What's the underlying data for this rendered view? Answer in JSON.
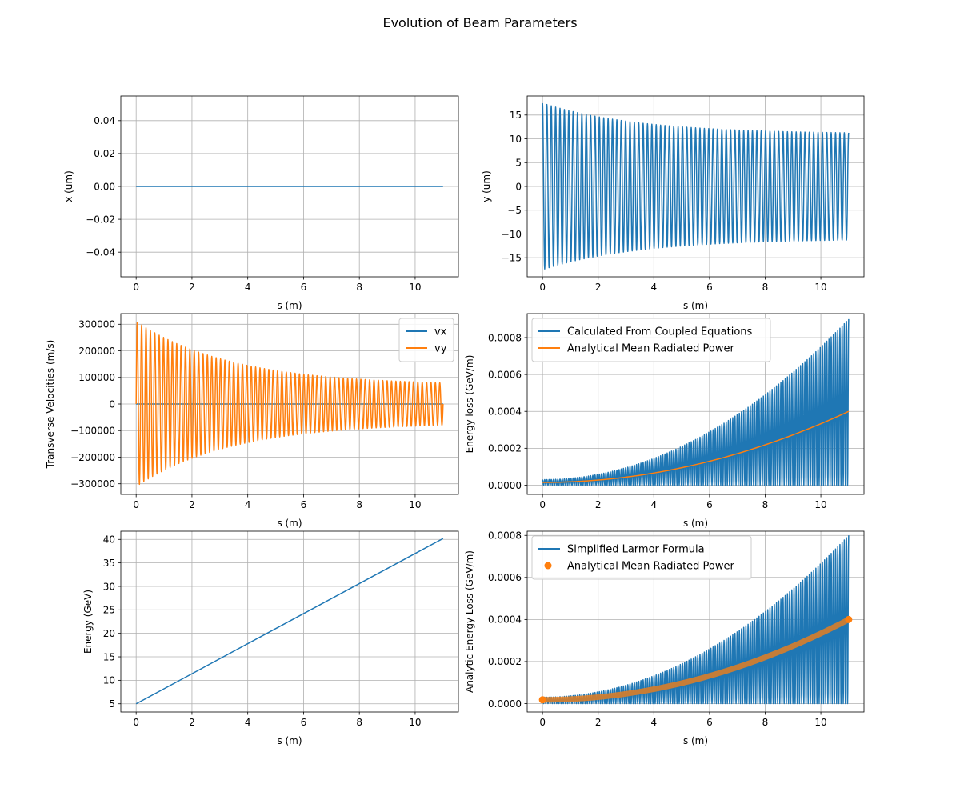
{
  "figure": {
    "title": "Evolution of Beam Parameters"
  },
  "colors": {
    "blue": "#1f77b4",
    "orange": "#ff7f0e",
    "grid": "#b0b0b0"
  },
  "chart_data": [
    {
      "id": "x",
      "type": "line",
      "xlabel": "s (m)",
      "ylabel": "x (um)",
      "xlim": [
        -0.55,
        11.55
      ],
      "ylim": [
        -0.055,
        0.055
      ],
      "xticks": [
        0,
        2,
        4,
        6,
        8,
        10
      ],
      "yticks": [
        -0.04,
        -0.02,
        0.0,
        0.02,
        0.04
      ],
      "ytick_labels": [
        "−0.04",
        "−0.02",
        "0.00",
        "0.02",
        "0.04"
      ],
      "grid": true,
      "series": [
        {
          "kind": "constant",
          "x0": 0,
          "x1": 11,
          "value": 0,
          "color": "#1f77b4"
        }
      ]
    },
    {
      "id": "y",
      "type": "line",
      "xlabel": "s (m)",
      "ylabel": "y (um)",
      "xlim": [
        -0.55,
        11.55
      ],
      "ylim": [
        -19,
        19
      ],
      "xticks": [
        0,
        2,
        4,
        6,
        8,
        10
      ],
      "yticks": [
        -15,
        -10,
        -5,
        0,
        5,
        10,
        15
      ],
      "ytick_labels": [
        "−15",
        "−10",
        "−5",
        "0",
        "5",
        "10",
        "15"
      ],
      "grid": true,
      "series": [
        {
          "kind": "oscillation",
          "fn": "cos",
          "x0": 0,
          "x1": 11,
          "cycles": 70,
          "amp_start": 17.5,
          "amp_end": 11,
          "envelope": "decay",
          "rectified": false,
          "color": "#1f77b4"
        }
      ]
    },
    {
      "id": "v",
      "type": "line",
      "xlabel": "s (m)",
      "ylabel": "Transverse Velocities (m/s)",
      "xlim": [
        -0.55,
        11.55
      ],
      "ylim": [
        -340000,
        340000
      ],
      "xticks": [
        0,
        2,
        4,
        6,
        8,
        10
      ],
      "yticks": [
        -300000,
        -200000,
        -100000,
        0,
        100000,
        200000,
        300000
      ],
      "ytick_labels": [
        "−300000",
        "−200000",
        "−100000",
        "0",
        "100000",
        "200000",
        "300000"
      ],
      "grid": true,
      "legend": {
        "position": "upper-right",
        "entries": [
          "vx",
          "vy"
        ]
      },
      "series": [
        {
          "name": "vx",
          "kind": "constant",
          "x0": 0,
          "x1": 11,
          "value": 0,
          "color": "#1f77b4"
        },
        {
          "name": "vy",
          "kind": "oscillation",
          "fn": "sin",
          "x0": 0,
          "x1": 11,
          "cycles": 70,
          "amp_start": 310000,
          "amp_end": 70000,
          "envelope": "decay",
          "rectified": false,
          "color": "#ff7f0e"
        }
      ]
    },
    {
      "id": "eloss",
      "type": "line",
      "xlabel": "s (m)",
      "ylabel": "Energy loss (GeV/m)",
      "xlim": [
        -0.55,
        11.55
      ],
      "ylim": [
        -5e-05,
        0.00093
      ],
      "xticks": [
        0,
        2,
        4,
        6,
        8,
        10
      ],
      "yticks": [
        0.0,
        0.0002,
        0.0004,
        0.0006,
        0.0008
      ],
      "ytick_labels": [
        "0.0000",
        "0.0002",
        "0.0004",
        "0.0006",
        "0.0008"
      ],
      "grid": true,
      "legend": {
        "position": "upper-left",
        "entries": [
          "Calculated From Coupled Equations",
          "Analytical Mean Radiated Power"
        ]
      },
      "series": [
        {
          "name": "Calculated From Coupled Equations",
          "kind": "oscillation",
          "fn": "cos",
          "x0": 0,
          "x1": 11,
          "cycles": 70,
          "amp_start": 3e-05,
          "amp_end": 0.0009,
          "envelope": "quadratic",
          "rectified": true,
          "color": "#1f77b4"
        },
        {
          "name": "Analytical Mean Radiated Power",
          "kind": "quadratic",
          "x0": 0,
          "x1": 11,
          "y_start": 1.5e-05,
          "y_end": 0.0004,
          "color": "#ff7f0e"
        }
      ]
    },
    {
      "id": "energy",
      "type": "line",
      "xlabel": "s (m)",
      "ylabel": "Energy (GeV)",
      "xlim": [
        -0.55,
        11.55
      ],
      "ylim": [
        3.25,
        41.75
      ],
      "xticks": [
        0,
        2,
        4,
        6,
        8,
        10
      ],
      "yticks": [
        5,
        10,
        15,
        20,
        25,
        30,
        35,
        40
      ],
      "grid": true,
      "series": [
        {
          "kind": "linear",
          "x": [
            0,
            11
          ],
          "y": [
            5,
            40.2
          ],
          "color": "#1f77b4"
        }
      ]
    },
    {
      "id": "larmor",
      "type": "line",
      "xlabel": "s (m)",
      "ylabel": "Analytic Energy Loss (GeV/m)",
      "xlim": [
        -0.55,
        11.55
      ],
      "ylim": [
        -4e-05,
        0.00082
      ],
      "xticks": [
        0,
        2,
        4,
        6,
        8,
        10
      ],
      "yticks": [
        0.0,
        0.0002,
        0.0004,
        0.0006,
        0.0008
      ],
      "ytick_labels": [
        "0.0000",
        "0.0002",
        "0.0004",
        "0.0006",
        "0.0008"
      ],
      "grid": true,
      "legend": {
        "position": "upper-left",
        "entries": [
          "Simplified Larmor Formula",
          "Analytical Mean Radiated Power"
        ]
      },
      "series": [
        {
          "name": "Simplified Larmor Formula",
          "kind": "oscillation",
          "fn": "cos",
          "x0": 0,
          "x1": 11,
          "cycles": 70,
          "amp_start": 3e-05,
          "amp_end": 0.0008,
          "envelope": "quadratic",
          "rectified": true,
          "color": "#1f77b4"
        },
        {
          "name": "Analytical Mean Radiated Power",
          "kind": "quadratic-markers",
          "x0": 0,
          "x1": 11,
          "y_start": 1.8e-05,
          "y_end": 0.0004,
          "color": "#ff7f0e"
        }
      ]
    }
  ]
}
